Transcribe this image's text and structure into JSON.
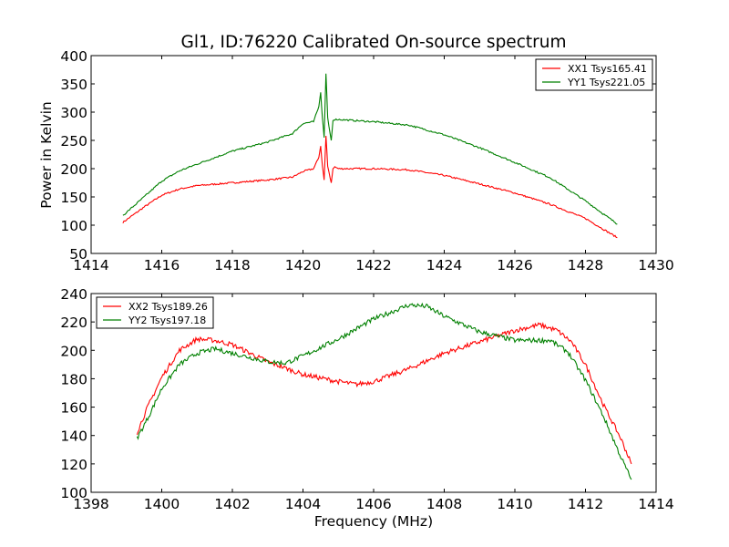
{
  "chart_data": [
    {
      "type": "line",
      "title": "Gl1, ID:76220 Calibrated On-source spectrum",
      "xlabel": "",
      "ylabel": "Power in Kelvin",
      "xlim": [
        1414,
        1430
      ],
      "ylim": [
        50,
        400
      ],
      "xticks": [
        "1414",
        "1416",
        "1418",
        "1420",
        "1422",
        "1424",
        "1426",
        "1428",
        "1430"
      ],
      "yticks": [
        "50",
        "100",
        "150",
        "200",
        "250",
        "300",
        "350",
        "400"
      ],
      "grid": false,
      "legend_position": "top-right",
      "series": [
        {
          "name": "XX1 Tsys165.41",
          "color": "#ff0000",
          "x": [
            1414.9,
            1415.5,
            1416,
            1416.5,
            1417,
            1418,
            1419,
            1419.7,
            1420.0,
            1420.3,
            1420.45,
            1420.5,
            1420.55,
            1420.6,
            1420.65,
            1420.7,
            1420.8,
            1420.85,
            1420.9,
            1421,
            1422,
            1423,
            1424,
            1425,
            1426,
            1427,
            1428,
            1428.9
          ],
          "y": [
            105,
            132,
            153,
            164,
            170,
            175,
            180,
            185,
            195,
            200,
            220,
            240,
            205,
            180,
            258,
            205,
            175,
            200,
            203,
            200,
            200,
            198,
            188,
            173,
            157,
            137,
            112,
            78
          ]
        },
        {
          "name": "YY1 Tsys221.05",
          "color": "#008000",
          "x": [
            1414.9,
            1415.5,
            1416,
            1416.5,
            1417,
            1418,
            1419,
            1419.7,
            1420.0,
            1420.3,
            1420.45,
            1420.5,
            1420.55,
            1420.6,
            1420.65,
            1420.7,
            1420.8,
            1420.85,
            1420.9,
            1421,
            1422,
            1423,
            1424,
            1425,
            1426,
            1427,
            1428,
            1428.9
          ],
          "y": [
            117,
            150,
            178,
            196,
            208,
            231,
            247,
            262,
            280,
            283,
            310,
            335,
            290,
            255,
            368,
            290,
            250,
            285,
            287,
            287,
            283,
            277,
            260,
            237,
            211,
            184,
            143,
            102
          ]
        }
      ]
    },
    {
      "type": "line",
      "title": "",
      "xlabel": "Frequency (MHz)",
      "ylabel": "",
      "xlim": [
        1398,
        1414
      ],
      "ylim": [
        100,
        240
      ],
      "xticks": [
        "1398",
        "1400",
        "1402",
        "1404",
        "1406",
        "1408",
        "1410",
        "1412",
        "1414"
      ],
      "yticks": [
        "100",
        "120",
        "140",
        "160",
        "180",
        "200",
        "220",
        "240"
      ],
      "grid": false,
      "legend_position": "top-left",
      "series": [
        {
          "name": "XX2 Tsys189.26",
          "color": "#ff0000",
          "x": [
            1399.3,
            1399.6,
            1400,
            1400.5,
            1401,
            1401.5,
            1402,
            1402.5,
            1403,
            1404,
            1405,
            1405.5,
            1406,
            1407,
            1408,
            1409,
            1410,
            1410.7,
            1411.2,
            1411.6,
            1412,
            1412.5,
            1413,
            1413.3
          ],
          "y": [
            142,
            160,
            181,
            200,
            208,
            207,
            204,
            198,
            192,
            183,
            178,
            176,
            178,
            187,
            198,
            206,
            214,
            218,
            214,
            206,
            190,
            162,
            138,
            120
          ]
        },
        {
          "name": "YY2 Tsys197.18",
          "color": "#008000",
          "x": [
            1399.3,
            1399.6,
            1400,
            1400.5,
            1401,
            1401.5,
            1402,
            1403,
            1403.5,
            1404,
            1405,
            1406,
            1407,
            1407.5,
            1408,
            1409,
            1410,
            1411,
            1411.5,
            1412,
            1412.5,
            1413,
            1413.3
          ],
          "y": [
            138,
            152,
            173,
            190,
            198,
            201,
            198,
            192,
            191,
            196,
            208,
            222,
            232,
            231,
            224,
            213,
            207,
            207,
            199,
            179,
            154,
            125,
            109
          ]
        }
      ]
    }
  ]
}
